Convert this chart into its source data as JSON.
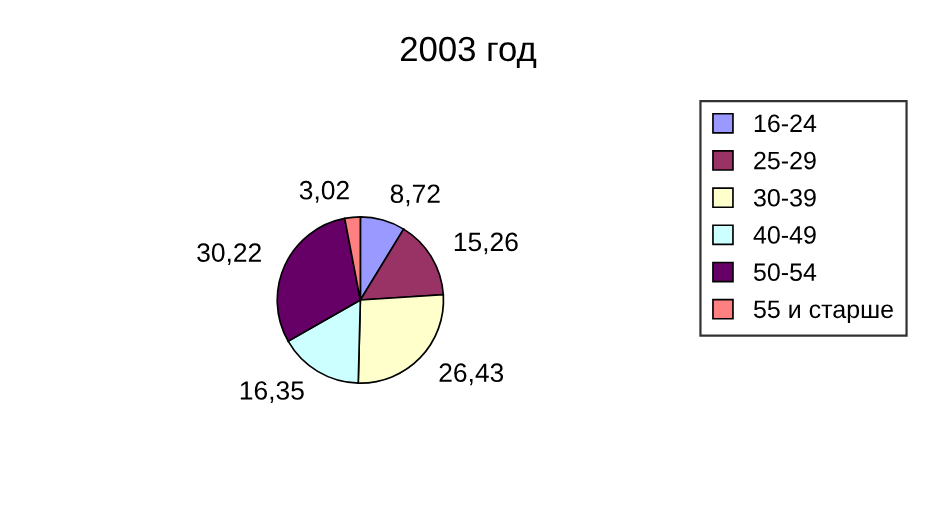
{
  "chart_data": {
    "type": "pie",
    "title": "2003 год",
    "categories": [
      "16-24",
      "25-29",
      "30-39",
      "40-49",
      "50-54",
      "55 и старше"
    ],
    "values": [
      8.72,
      15.26,
      26.43,
      16.35,
      30.22,
      3.02
    ],
    "value_labels": [
      "8,72",
      "15,26",
      "26,43",
      "16,35",
      "30,22",
      "3,02"
    ],
    "colors": [
      "#9999ff",
      "#993366",
      "#ffffcc",
      "#ccffff",
      "#660066",
      "#ff8080"
    ],
    "legend": "right"
  }
}
